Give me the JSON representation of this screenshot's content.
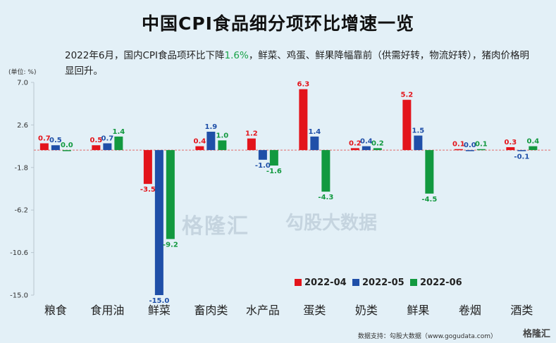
{
  "title": "中国CPI食品细分项环比增速一览",
  "subtitle_before": "2022年6月，国内CPI食品项环比下降",
  "subtitle_highlight": "1.6%",
  "subtitle_after": "，鲜菜、鸡蛋、鲜果降幅靠前（供需好转，物流好转），猪肉价格明显回升。",
  "unit_label": "(单位: %)",
  "footer": "数据支持：勾股大数据（www.gogudata.com）",
  "brand": "格隆汇",
  "watermark": "格隆汇",
  "watermark2": "勾股大数据",
  "colors": {
    "2022-04": "#e3141b",
    "2022-05": "#1f4fa8",
    "2022-06": "#12993f",
    "zero_line": "#e36a6a"
  },
  "chart_data": {
    "type": "bar",
    "categories": [
      "粮食",
      "食用油",
      "鲜菜",
      "畜肉类",
      "水产品",
      "蛋类",
      "奶类",
      "鲜果",
      "卷烟",
      "酒类"
    ],
    "series": [
      {
        "name": "2022-04",
        "values": [
          0.7,
          0.5,
          -3.5,
          0.4,
          1.2,
          6.3,
          0.2,
          5.2,
          0.1,
          0.3
        ],
        "labels": [
          "0.7",
          "0.5",
          "-3.5",
          "0.4",
          "1.2",
          "6.3",
          "0.2",
          "5.2",
          "0.1",
          "0.3"
        ]
      },
      {
        "name": "2022-05",
        "values": [
          0.5,
          0.7,
          -15.0,
          1.9,
          -1.0,
          1.4,
          0.4,
          1.5,
          0.0,
          -0.1
        ],
        "labels": [
          "0.5",
          "0.7",
          "-15.0",
          "1.9",
          "-1.0",
          "1.4",
          "0.4",
          "1.5",
          "0.0",
          "-0.1"
        ]
      },
      {
        "name": "2022-06",
        "values": [
          0.0,
          1.4,
          -9.2,
          1.0,
          -1.6,
          -4.3,
          0.2,
          -4.5,
          0.1,
          0.4
        ],
        "labels": [
          "0.0",
          "1.4",
          "-9.2",
          "1.0",
          "-1.6",
          "-4.3",
          "0.2",
          "-4.5",
          "0.1",
          "0.4"
        ]
      }
    ],
    "yticks": [
      "7.0",
      "2.6",
      "-1.8",
      "-6.2",
      "-10.6",
      "-15.0"
    ],
    "ylim": [
      -15.0,
      7.0
    ],
    "legend": "bottom-right",
    "grid": false
  }
}
